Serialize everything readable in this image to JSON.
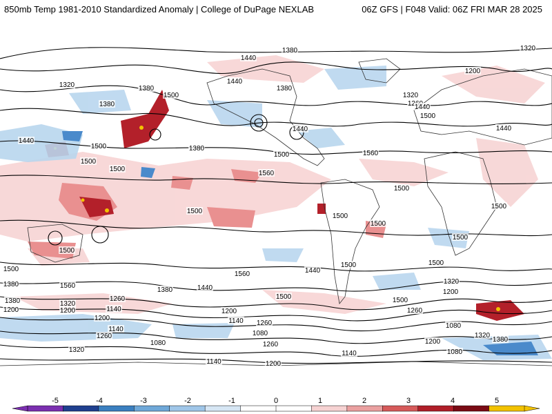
{
  "header": {
    "title": "850mb Temp 1981-2010 Standardized Anomaly | College of DuPage NEXLAB",
    "run_info": "06Z GFS | F048 Valid: 06Z FRI MAR 28 2025"
  },
  "contour_labels": [
    "1380",
    "1440",
    "1320",
    "1200",
    "1320",
    "1380",
    "1440",
    "1260",
    "1380",
    "1500",
    "1320",
    "1440",
    "1440",
    "1500",
    "1380",
    "1440",
    "1500",
    "1500",
    "1500",
    "1380",
    "1500",
    "1440",
    "1560",
    "1560",
    "1500",
    "1500",
    "1500",
    "1500",
    "1500",
    "1500",
    "1500",
    "1500",
    "1500",
    "1560",
    "1440",
    "1380",
    "1560",
    "1380",
    "1440",
    "1500",
    "1500",
    "1500",
    "1320",
    "1200",
    "1260",
    "1380",
    "1320",
    "1200",
    "1140",
    "1260",
    "1260",
    "1200",
    "1140",
    "1080",
    "1080",
    "1200",
    "1140",
    "1260",
    "1080",
    "1320",
    "1380",
    "1080",
    "1200",
    "1140",
    "1200",
    "1260",
    "1320",
    "1140",
    "1200"
  ],
  "colorbar": {
    "labels": [
      "-5",
      "-4",
      "-3",
      "-2",
      "-1",
      "0",
      "1",
      "2",
      "3",
      "4",
      "5"
    ],
    "colors": [
      "#7b2fb0",
      "#1f3f8f",
      "#3a7fc0",
      "#6fa8d8",
      "#9fc6e8",
      "#d6e6f4",
      "#ffffff",
      "#ffffff",
      "#f6d2d2",
      "#eaa0a0",
      "#d65a5a",
      "#b01e28",
      "#7a0a14",
      "#f2c200"
    ]
  }
}
